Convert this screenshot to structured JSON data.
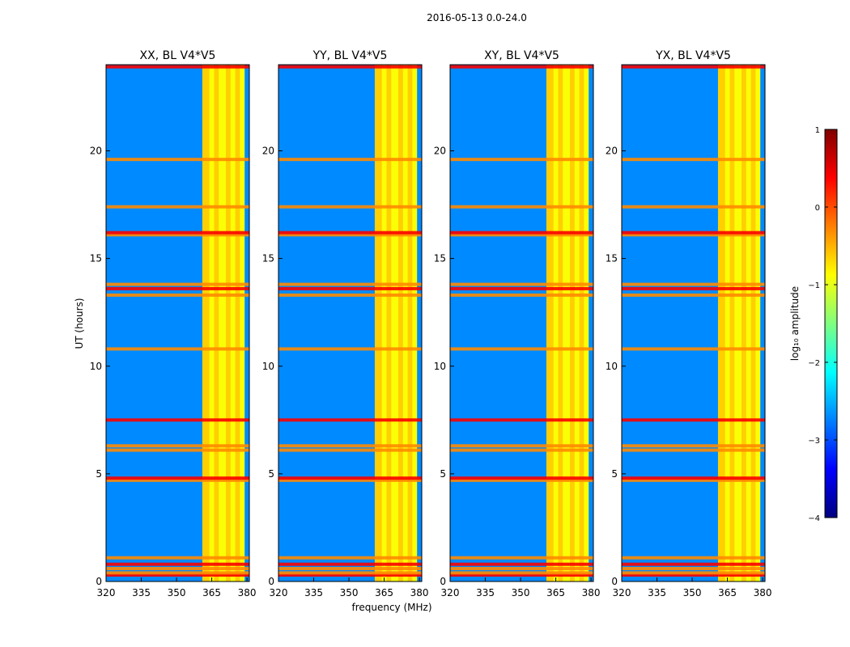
{
  "suptitle": "2016-05-13 0.0-24.0",
  "chart_data": {
    "type": "heatmap",
    "xlabel": "frequency (MHz)",
    "ylabel": "UT (hours)",
    "xlim": [
      320,
      381
    ],
    "ylim": [
      0,
      24
    ],
    "xticks": [
      320,
      335,
      350,
      365,
      380
    ],
    "yticks": [
      0,
      5,
      10,
      15,
      20
    ],
    "colorbar": {
      "label": "log₁₀ amplitude",
      "range": [
        -4,
        1
      ],
      "ticks": [
        1,
        0,
        -1,
        -2,
        -3,
        -4
      ],
      "tick_labels": [
        "1",
        "0",
        "−1",
        "−2",
        "−3",
        "−4"
      ],
      "colormap": "jet"
    },
    "bright_band_mhz": [
      361,
      379
    ],
    "rfi_bands_mhz": [
      [
        361,
        364
      ],
      [
        366,
        368
      ],
      [
        371,
        373
      ],
      [
        375,
        377
      ]
    ],
    "bright_rows_ut": [
      0.3,
      0.4,
      0.6,
      0.8,
      1.1,
      4.7,
      4.8,
      6.1,
      6.3,
      7.5,
      10.8,
      13.3,
      13.6,
      13.8,
      16.1,
      16.2,
      17.4,
      19.6,
      23.9
    ],
    "panels": [
      {
        "title": "XX, BL V4*V5"
      },
      {
        "title": "YY, BL V4*V5"
      },
      {
        "title": "XY, BL V4*V5"
      },
      {
        "title": "YX, BL V4*V5"
      }
    ]
  }
}
